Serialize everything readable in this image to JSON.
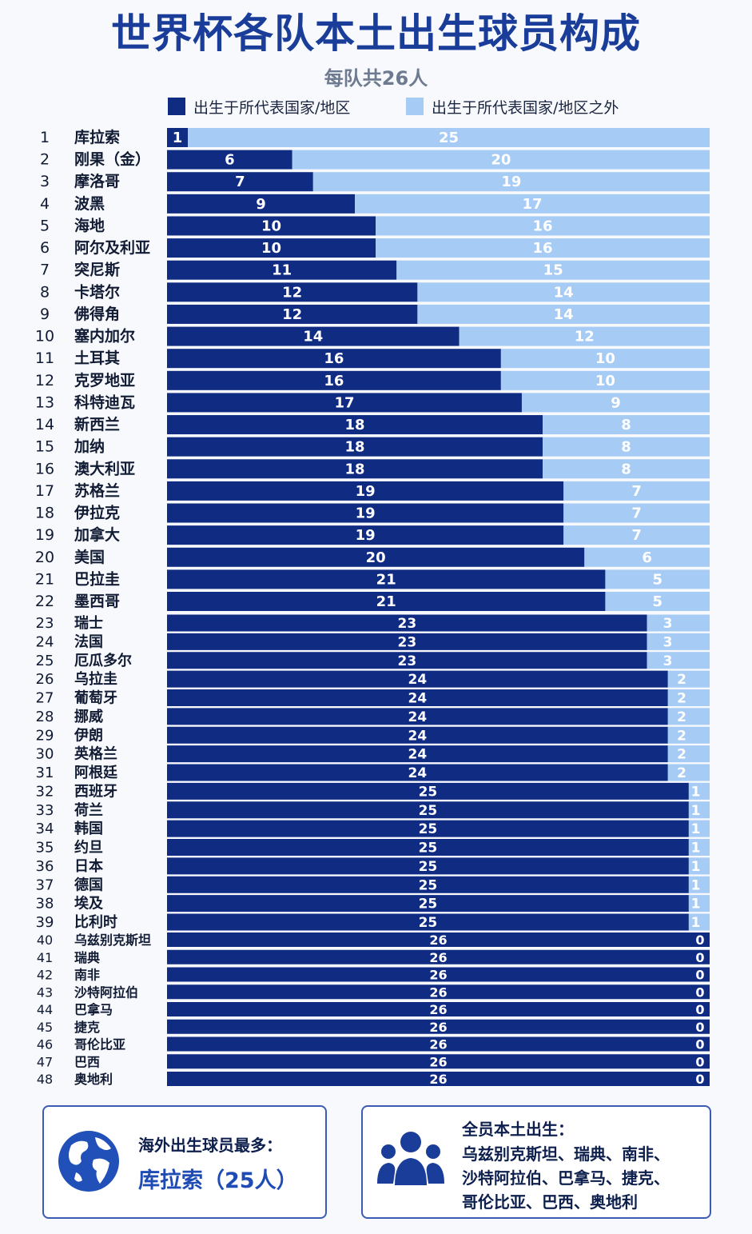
{
  "title": "世界杯各队本土出生球员构成",
  "subtitle": "每队共26人",
  "colors": {
    "home": "#0f2b82",
    "abroad": "#a6cbf4",
    "title": "#1a3d9a"
  },
  "legend": {
    "home_label": "出生于所代表国家/地区",
    "abroad_label": "出生于所代表国家/地区之外"
  },
  "chart_data": {
    "type": "bar",
    "orientation": "horizontal",
    "stacked": true,
    "total": 26,
    "xlim": [
      0,
      26
    ],
    "ranks": [
      1,
      2,
      3,
      4,
      5,
      6,
      7,
      8,
      9,
      10,
      11,
      12,
      13,
      14,
      15,
      16,
      17,
      18,
      19,
      20,
      21,
      22,
      23,
      24,
      25,
      26,
      27,
      28,
      29,
      30,
      31,
      32,
      33,
      34,
      35,
      36,
      37,
      38,
      39,
      40,
      41,
      42,
      43,
      44,
      45,
      46,
      47,
      48
    ],
    "categories": [
      "库拉索",
      "刚果（金）",
      "摩洛哥",
      "波黑",
      "海地",
      "阿尔及利亚",
      "突尼斯",
      "卡塔尔",
      "佛得角",
      "塞内加尔",
      "土耳其",
      "克罗地亚",
      "科特迪瓦",
      "新西兰",
      "加纳",
      "澳大利亚",
      "苏格兰",
      "伊拉克",
      "加拿大",
      "美国",
      "巴拉圭",
      "墨西哥",
      "瑞士",
      "法国",
      "厄瓜多尔",
      "乌拉圭",
      "葡萄牙",
      "挪威",
      "伊朗",
      "英格兰",
      "阿根廷",
      "西班牙",
      "荷兰",
      "韩国",
      "约旦",
      "日本",
      "德国",
      "埃及",
      "比利时",
      "乌兹别克斯坦",
      "瑞典",
      "南非",
      "沙特阿拉伯",
      "巴拿马",
      "捷克",
      "哥伦比亚",
      "巴西",
      "奥地利"
    ],
    "series": [
      {
        "name": "出生于所代表国家/地区",
        "values": [
          1,
          6,
          7,
          9,
          10,
          10,
          11,
          12,
          12,
          14,
          16,
          16,
          17,
          18,
          18,
          18,
          19,
          19,
          19,
          20,
          21,
          21,
          23,
          23,
          23,
          24,
          24,
          24,
          24,
          24,
          24,
          25,
          25,
          25,
          25,
          25,
          25,
          25,
          25,
          26,
          26,
          26,
          26,
          26,
          26,
          26,
          26,
          26
        ]
      },
      {
        "name": "出生于所代表国家/地区之外",
        "values": [
          25,
          20,
          19,
          17,
          16,
          16,
          15,
          14,
          14,
          12,
          10,
          10,
          9,
          8,
          8,
          8,
          7,
          7,
          7,
          6,
          5,
          5,
          3,
          3,
          3,
          2,
          2,
          2,
          2,
          2,
          2,
          1,
          1,
          1,
          1,
          1,
          1,
          1,
          1,
          0,
          0,
          0,
          0,
          0,
          0,
          0,
          0,
          0
        ]
      }
    ]
  },
  "callouts": {
    "most_abroad_label": "海外出生球员最多：",
    "most_abroad_value": "库拉索（25人）",
    "all_home_label": "全员本土出生：",
    "all_home_lines": [
      "乌兹别克斯坦、瑞典、南非、",
      "沙特阿拉伯、巴拿马、捷克、",
      "哥伦比亚、巴西、奥地利"
    ]
  }
}
